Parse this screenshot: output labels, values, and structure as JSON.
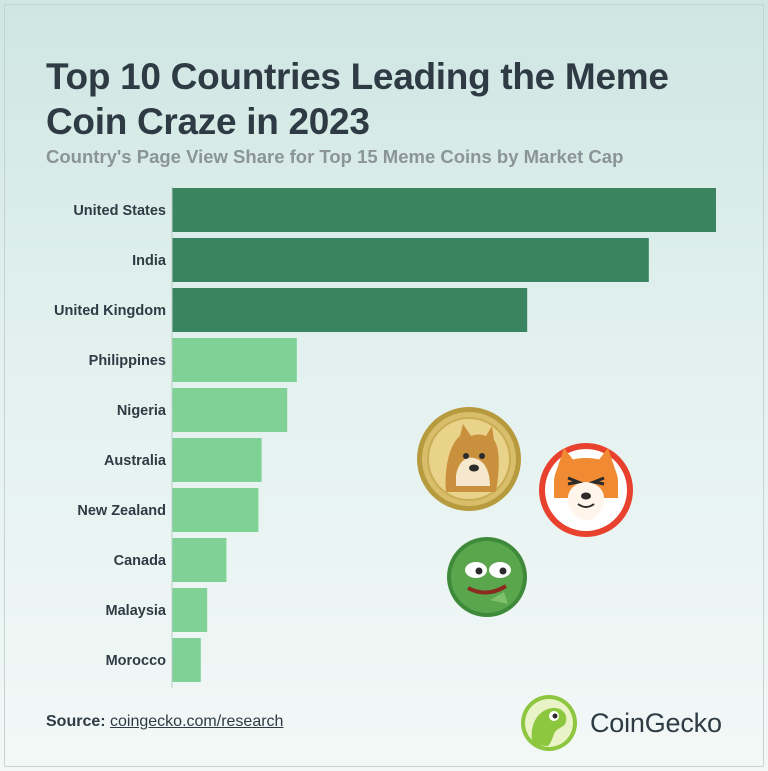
{
  "title": "Top 10 Countries Leading the Meme Coin Craze in 2023",
  "subtitle": "Country's Page View Share for Top 15 Meme Coins by Market Cap",
  "source": {
    "label": "Source:",
    "link_text": "coingecko.com/research"
  },
  "brand": {
    "name": "CoinGecko",
    "icon": "gecko-logo-icon"
  },
  "decorations": {
    "coins": [
      "doge-coin-icon",
      "shiba-inu-coin-icon",
      "pepe-coin-icon"
    ]
  },
  "colors": {
    "top_bars": "#3a8560",
    "other_bars": "#7fd195",
    "title": "#2e3b45",
    "subtitle": "#8a9499"
  },
  "chart_data": {
    "type": "bar",
    "orientation": "horizontal",
    "title": "Top 10 Countries Leading the Meme Coin Craze in 2023",
    "subtitle": "Country's Page View Share for Top 15 Meme Coins by Market Cap",
    "xlabel": "",
    "ylabel": "",
    "categories": [
      "United States",
      "India",
      "United Kingdom",
      "Philippines",
      "Nigeria",
      "Australia",
      "New Zealand",
      "Canada",
      "Malaysia",
      "Morocco"
    ],
    "values": [
      17.0,
      14.9,
      11.1,
      3.9,
      3.6,
      2.8,
      2.7,
      1.7,
      1.1,
      0.9
    ],
    "highlighted_top": 3,
    "xlim": [
      0,
      17.0
    ],
    "grid": false,
    "legend": "none"
  }
}
